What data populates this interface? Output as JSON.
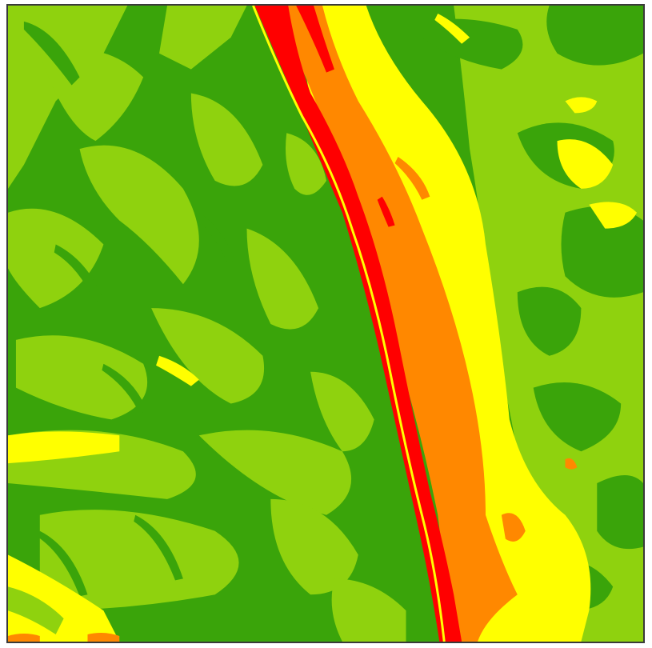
{
  "map": {
    "type": "classified-raster",
    "classes": [
      {
        "name": "dark-green",
        "color": "#3aa40a"
      },
      {
        "name": "light-green",
        "color": "#8fd20e"
      },
      {
        "name": "yellow",
        "color": "#ffff00"
      },
      {
        "name": "orange",
        "color": "#ff8800"
      },
      {
        "name": "red",
        "color": "#ff0000"
      }
    ]
  }
}
